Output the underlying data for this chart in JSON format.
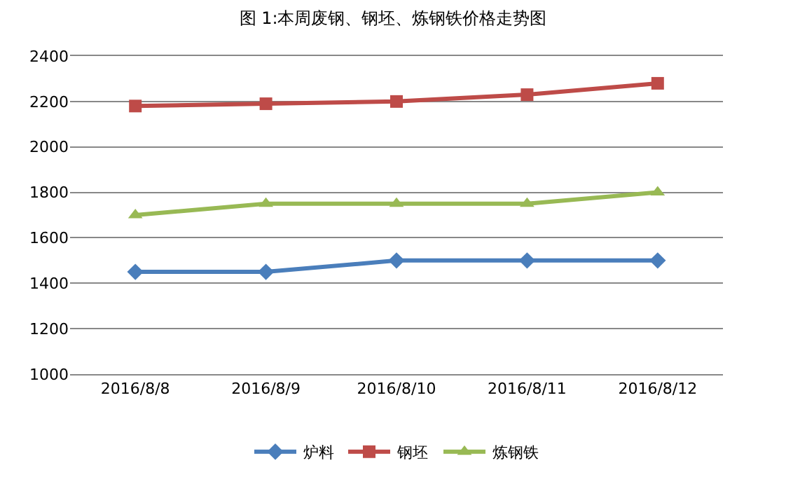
{
  "chart_data": {
    "type": "line",
    "title": "图 1:本周废钢、钢坯、炼钢铁价格走势图",
    "categories": [
      "2016/8/8",
      "2016/8/9",
      "2016/8/10",
      "2016/8/11",
      "2016/8/12"
    ],
    "series": [
      {
        "name": "炉料",
        "color": "#4a7ebb",
        "marker": "diamond",
        "values": [
          1450,
          1450,
          1500,
          1500,
          1500
        ]
      },
      {
        "name": "钢坯",
        "color": "#be4b48",
        "marker": "square",
        "values": [
          2180,
          2190,
          2200,
          2230,
          2280
        ]
      },
      {
        "name": "炼钢铁",
        "color": "#98b954",
        "marker": "triangle",
        "values": [
          1700,
          1750,
          1750,
          1750,
          1800
        ]
      }
    ],
    "ylim": [
      1000,
      2400
    ],
    "yticks": [
      1000,
      1200,
      1400,
      1600,
      1800,
      2000,
      2200,
      2400
    ],
    "grid": "y",
    "legend": "bottom"
  }
}
